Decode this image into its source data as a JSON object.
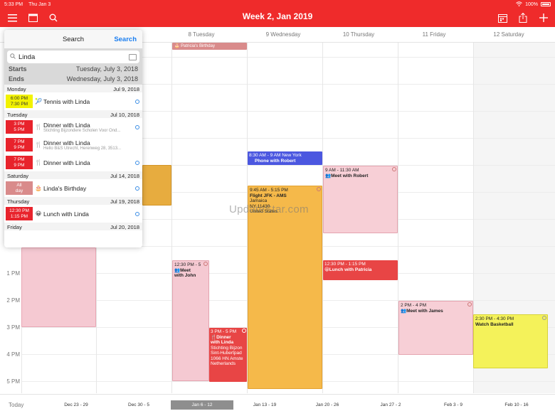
{
  "status": {
    "time": "5:33 PM",
    "date": "Thu Jan 3",
    "battery": "100%"
  },
  "nav": {
    "title": "Week 2, Jan 2019"
  },
  "days": [
    "8 Tuesday",
    "9 Wednesday",
    "10 Thursday",
    "11 Friday",
    "12 Saturday"
  ],
  "hours": [
    "1 PM",
    "2 PM",
    "3 PM",
    "4 PM",
    "5 PM"
  ],
  "events": {
    "patricias_birthday": {
      "title": "🎂 Patricia's Birthday"
    },
    "ny_flight": {
      "time": "8:30 AM - 9 AM New York",
      "title": "Phone with Robert"
    },
    "meet_robert": {
      "time": "9 AM - 11:30 AM",
      "title": "👥Meet with Robert"
    },
    "flight_ams": {
      "time": "9:45 AM - 5:15 PM",
      "title": "Flight JFK - AMS",
      "sub1": "Jamaica",
      "sub2": "NY 11430",
      "sub3": "United States"
    },
    "meet_john": {
      "time": "12:30 PM - 5",
      "title": "👥Meet",
      "title2": "with John"
    },
    "lunch_patricia": {
      "time": "12:30 PM - 1:15 PM",
      "title": "😀Lunch with Patricia"
    },
    "meet_james": {
      "time": "2 PM - 4 PM",
      "title": "👥Meet with James"
    },
    "watch_basketball": {
      "time": "2:30 PM - 4:30 PM",
      "title": "Watch Basketball"
    },
    "dinner_linda": {
      "time": "3 PM - 5 PM",
      "title": "🍴Dinner",
      "title2": "with Linda",
      "sub1": "Stichting Bijzon",
      "sub2": "Sint-Hubertpad",
      "sub3": "1066 HN Amste",
      "sub4": "Netherlands"
    }
  },
  "weeks": {
    "today": "Today",
    "items": [
      "Dec 23 - 29",
      "Dec 30 - 5",
      "Jan 6 - 12",
      "Jan 13 - 19",
      "Jan 20 - 26",
      "Jan 27 - 2",
      "Feb 3 - 9",
      "Feb 10 - 16"
    ]
  },
  "watermark": "UpdateStar.com",
  "search": {
    "title": "Search",
    "action": "Search",
    "query": "Linda",
    "starts_label": "Starts",
    "starts_value": "Tuesday, July 3, 2018",
    "ends_label": "Ends",
    "ends_value": "Wednesday, July 3, 2018",
    "groups": [
      {
        "day": "Monday",
        "date": "Jul 9, 2018"
      },
      {
        "day": "Tuesday",
        "date": "Jul 10, 2018"
      },
      {
        "day": "Saturday",
        "date": "Jul 14, 2018"
      },
      {
        "day": "Thursday",
        "date": "Jul 19, 2018"
      },
      {
        "day": "Friday",
        "date": "Jul 20, 2018"
      }
    ],
    "results": [
      {
        "t1": "6:00 PM",
        "t2": "7:30 PM",
        "emoji": "🎾",
        "title": "Tennis with Linda",
        "sub": "",
        "color": "#f2f200"
      },
      {
        "t1": "3 PM",
        "t2": "5 PM",
        "emoji": "🍴",
        "title": "Dinner with Linda",
        "sub": "Stichting Bijzondere Scholen Voor Ond...",
        "color": "#e8232c"
      },
      {
        "t1": "7 PM",
        "t2": "9 PM",
        "emoji": "🍴",
        "title": "Dinner with Linda",
        "sub": "Hello B&S Utrecht, Herenweg 28, 3513...",
        "color": "#e8232c"
      },
      {
        "t1": "7 PM",
        "t2": "9 PM",
        "emoji": "🍴",
        "title": "Dinner with Linda",
        "sub": "",
        "color": "#e8232c"
      },
      {
        "t1": "All",
        "t2": "day",
        "emoji": "🎂",
        "title": "Linda's Birthday",
        "sub": "",
        "color": "#d98b8b"
      },
      {
        "t1": "12:30 PM",
        "t2": "1:15 PM",
        "emoji": "😀",
        "title": "Lunch with Linda",
        "sub": "",
        "color": "#e8232c"
      }
    ]
  }
}
